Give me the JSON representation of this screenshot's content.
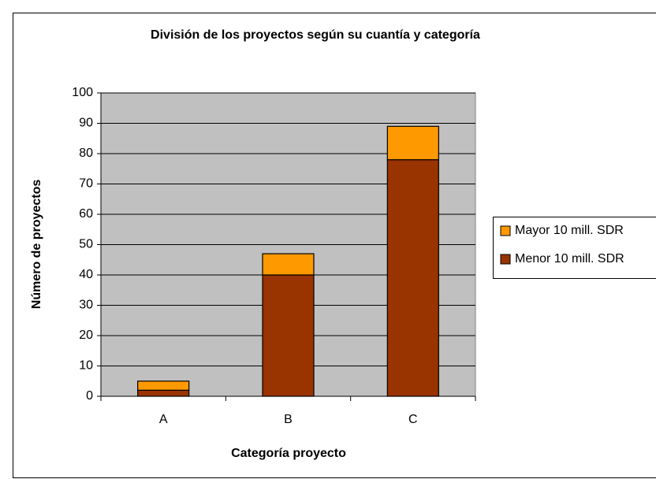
{
  "chart_data": {
    "type": "stacked_bar",
    "title": "División de los proyectos según su cuantía y categoría",
    "x_label": "Categoría proyecto",
    "y_label": "Número de proyectos",
    "categories": [
      "A",
      "B",
      "C"
    ],
    "series": [
      {
        "name": "Menor 10 mill. SDR",
        "color": "#993300",
        "values": [
          2,
          40,
          78
        ]
      },
      {
        "name": "Mayor 10 mill. SDR",
        "color": "#ff9900",
        "values": [
          3,
          7,
          11
        ]
      }
    ],
    "ylim": [
      0,
      100
    ],
    "yticks": [
      0,
      10,
      20,
      30,
      40,
      50,
      60,
      70,
      80,
      90,
      100
    ],
    "grid": true,
    "legend": "right"
  }
}
